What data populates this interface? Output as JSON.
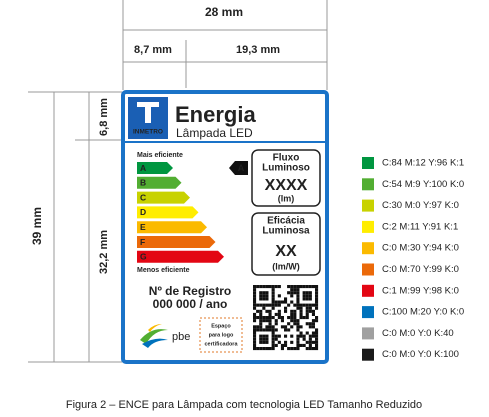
{
  "dimensions": {
    "total_width": "28 mm",
    "left_width": "8,7 mm",
    "right_width": "19,3 mm",
    "total_height": "39 mm",
    "header_height": "6,8 mm",
    "body_height": "32,2 mm"
  },
  "label": {
    "title": "Energia",
    "subtitle": "Lâmpada LED",
    "logo": "INMETRO",
    "scale_top": "Mais eficiente",
    "scale_bottom": "Menos eficiente",
    "classes": [
      {
        "letter": "A",
        "color": "#009640"
      },
      {
        "letter": "B",
        "color": "#52ae32"
      },
      {
        "letter": "C",
        "color": "#c8d200"
      },
      {
        "letter": "D",
        "color": "#ffed00"
      },
      {
        "letter": "E",
        "color": "#fbba00"
      },
      {
        "letter": "F",
        "color": "#eb6909"
      },
      {
        "letter": "G",
        "color": "#e30613"
      }
    ],
    "rating": "A",
    "flux": {
      "title_lines": [
        "Fluxo",
        "Luminoso"
      ],
      "value": "XXXX",
      "unit": "(lm)"
    },
    "efficacy": {
      "title_lines": [
        "Eficácia",
        "Luminosa"
      ],
      "value": "XX",
      "unit": "(lm/W)"
    },
    "registry": {
      "title": "Nº de Registro",
      "number": "000 000 / ano"
    },
    "program_logo": "pbe",
    "cert_space": [
      "Espaço",
      "para logo",
      "certificadora"
    ]
  },
  "color_legend": [
    {
      "color": "#009640",
      "label": "C:84 M:12 Y:96 K:1"
    },
    {
      "color": "#52ae32",
      "label": "C:54 M:9 Y:100 K:0"
    },
    {
      "color": "#c8d200",
      "label": "C:30 M:0 Y:97 K:0"
    },
    {
      "color": "#ffed00",
      "label": "C:2 M:11 Y:91 K:1"
    },
    {
      "color": "#fbba00",
      "label": "C:0 M:30 Y:94 K:0"
    },
    {
      "color": "#eb6909",
      "label": "C:0 M:70 Y:99 K:0"
    },
    {
      "color": "#e30613",
      "label": "C:1 M:99 Y:98 K:0"
    },
    {
      "color": "#0072bc",
      "label": "C:100 M:20 Y:0 K:0"
    },
    {
      "color": "#a0a0a0",
      "label": "C:0 M:0 Y:0 K:40"
    },
    {
      "color": "#1a1a1a",
      "label": "C:0 M:0 Y:0 K:100"
    }
  ],
  "caption": "Figura 2 – ENCE para Lâmpada com tecnologia LED Tamanho Reduzido"
}
